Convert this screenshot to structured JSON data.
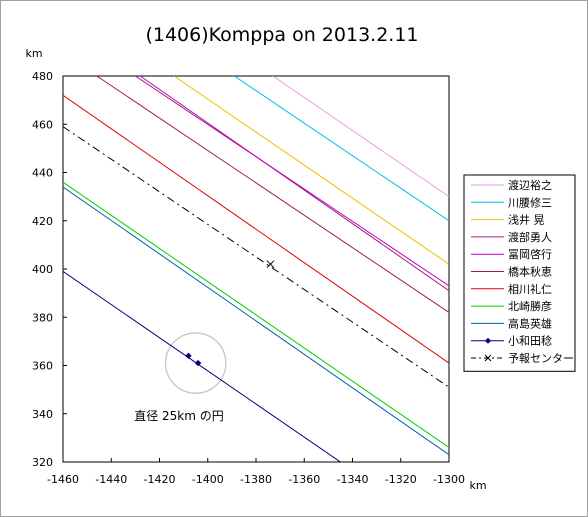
{
  "chart_data": {
    "type": "line",
    "title": "(1406)Komppa on 2013.2.11",
    "xlabel": "km",
    "ylabel": "km",
    "xlim": [
      -1460,
      -1300
    ],
    "ylim": [
      320,
      480
    ],
    "xticks": [
      -1460,
      -1440,
      -1420,
      -1400,
      -1380,
      -1360,
      -1340,
      -1320,
      -1300
    ],
    "yticks": [
      320,
      340,
      360,
      380,
      400,
      420,
      440,
      460,
      480
    ],
    "grid": false,
    "legend_position": "right",
    "annotation": "直径 25km の円",
    "circle": {
      "center": [
        -1405,
        361
      ],
      "diameter_km": 25,
      "color": "#c8c8c8"
    },
    "series": [
      {
        "name": "渡辺裕之",
        "color": "#e89ce8",
        "points": [
          [
            -1373,
            480
          ],
          [
            -1300,
            430
          ]
        ]
      },
      {
        "name": "川腰修三",
        "color": "#00c0e0",
        "points": [
          [
            -1389,
            480
          ],
          [
            -1300,
            420
          ]
        ]
      },
      {
        "name": "浅井 晃",
        "color": "#f0c000",
        "points": [
          [
            -1414,
            480
          ],
          [
            -1300,
            402
          ]
        ]
      },
      {
        "name": "渡部勇人",
        "color": "#a0207a",
        "points": [
          [
            -1428,
            480
          ],
          [
            -1300,
            391
          ]
        ]
      },
      {
        "name": "冨岡啓行",
        "color": "#c000c0",
        "points": [
          [
            -1430,
            480
          ],
          [
            -1300,
            393
          ]
        ]
      },
      {
        "name": "橋本秋恵",
        "color": "#a02040",
        "points": [
          [
            -1446,
            480
          ],
          [
            -1300,
            382
          ]
        ]
      },
      {
        "name": "相川礼仁",
        "color": "#e00000",
        "points": [
          [
            -1460,
            472
          ],
          [
            -1300,
            361
          ]
        ]
      },
      {
        "name": "北崎勝彦",
        "color": "#00d000",
        "points": [
          [
            -1460,
            436
          ],
          [
            -1300,
            326
          ]
        ]
      },
      {
        "name": "高島英雄",
        "color": "#0060a0",
        "points": [
          [
            -1460,
            434
          ],
          [
            -1300,
            323
          ]
        ]
      },
      {
        "name": "小和田稔",
        "color": "#00007a",
        "marker": "diamond",
        "points": [
          [
            -1460,
            399
          ],
          [
            -1345,
            320
          ]
        ],
        "observed": [
          [
            -1408,
            364
          ],
          [
            -1404,
            361
          ]
        ]
      },
      {
        "name": "予報センター",
        "color": "#000000",
        "dash": "dashdot",
        "points": [
          [
            -1460,
            459
          ],
          [
            -1300,
            351
          ]
        ],
        "center_marker": [
          -1374,
          402
        ]
      }
    ]
  }
}
